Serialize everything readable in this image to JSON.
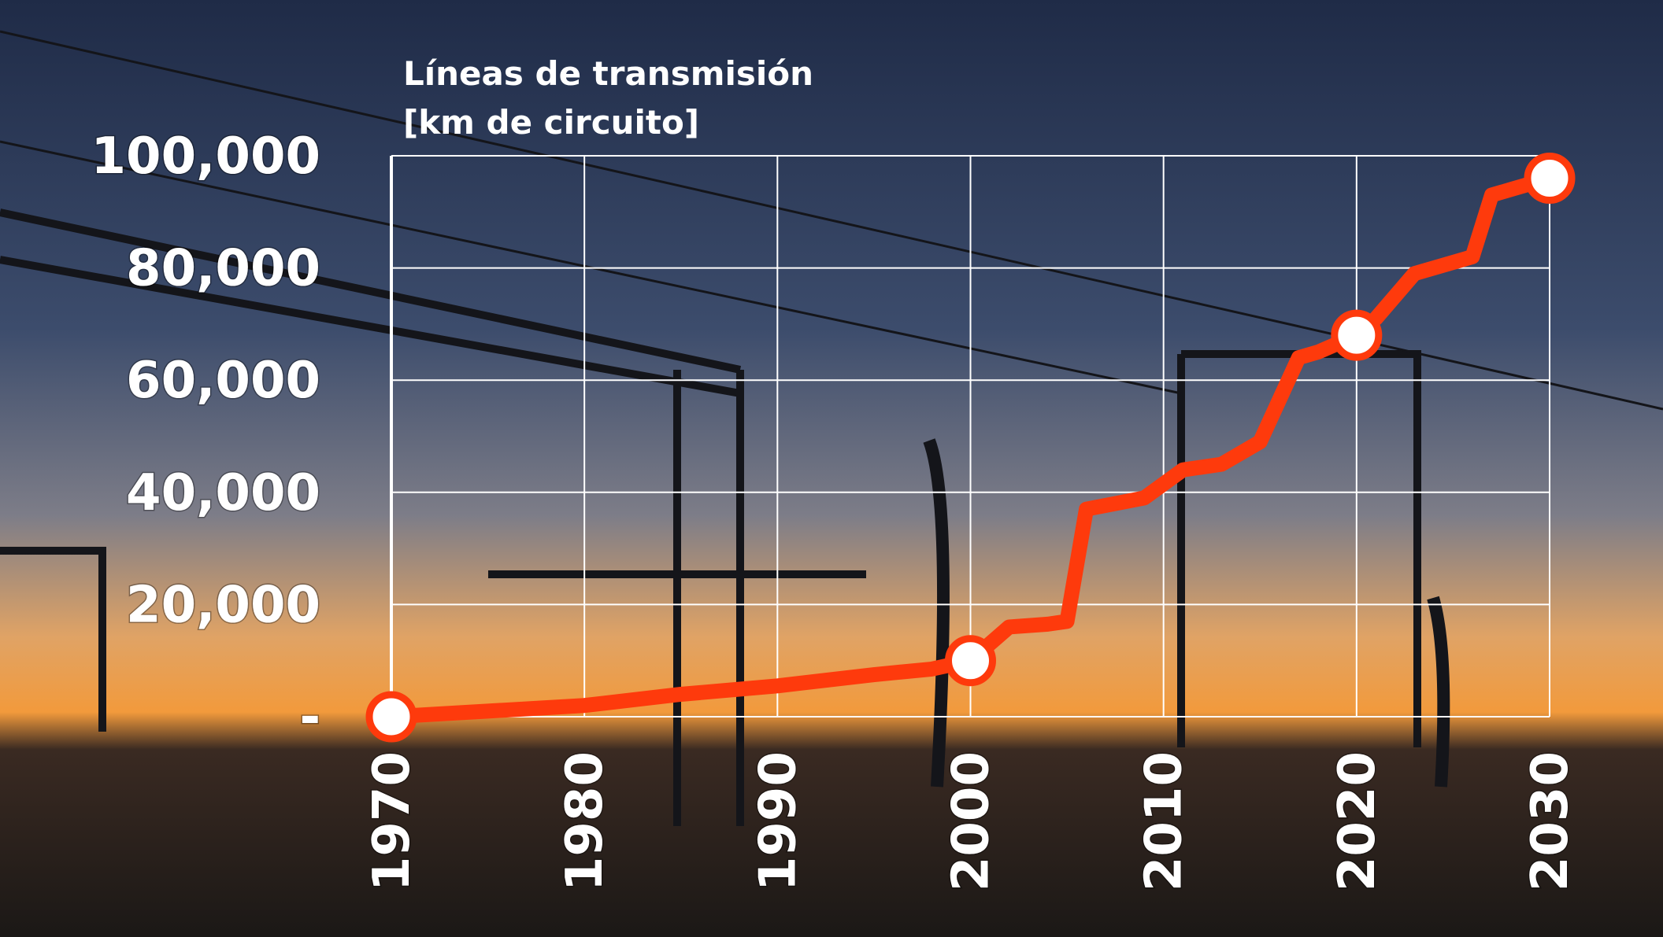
{
  "chart_data": {
    "type": "line",
    "title": "Líneas de transmisión",
    "subtitle": "[km de circuito]",
    "x": [
      1970,
      1975,
      1980,
      1985,
      1990,
      1995,
      1998,
      2000,
      2002,
      2004,
      2005,
      2006,
      2009,
      2011,
      2013,
      2015,
      2017,
      2018,
      2020,
      2021,
      2023,
      2026,
      2027,
      2028,
      2030
    ],
    "series": [
      {
        "color": "#fe3a0c",
        "values": [
          0,
          1000,
          2000,
          4000,
          5500,
          7500,
          8500,
          10000,
          16000,
          16500,
          17000,
          37000,
          39000,
          44000,
          45000,
          49000,
          64000,
          65000,
          68000,
          71000,
          79000,
          82000,
          93000,
          94000,
          96000
        ],
        "markers": [
          true,
          false,
          false,
          false,
          false,
          false,
          false,
          true,
          false,
          false,
          false,
          false,
          false,
          false,
          false,
          false,
          false,
          false,
          true,
          false,
          false,
          false,
          false,
          false,
          true
        ]
      }
    ],
    "xlim": [
      1970,
      2030
    ],
    "xticks": [
      1970,
      1980,
      1990,
      2000,
      2010,
      2020,
      2030
    ],
    "ylim": [
      0,
      100000
    ],
    "yticks": [
      {
        "value": 0,
        "label": "-"
      },
      {
        "value": 20000,
        "label": "20,000"
      },
      {
        "value": 40000,
        "label": "40,000"
      },
      {
        "value": 60000,
        "label": "60,000"
      },
      {
        "value": 80000,
        "label": "80,000"
      },
      {
        "value": 100000,
        "label": "100,000"
      }
    ],
    "grid": true
  }
}
